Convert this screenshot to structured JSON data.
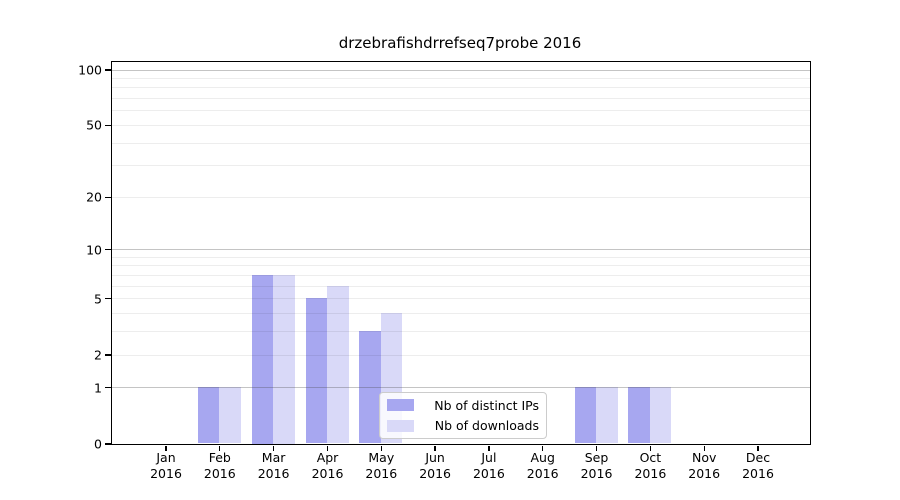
{
  "title": "drzebrafishdrrefseq7probe 2016",
  "colors": {
    "distinct_ips": "#a7a7f0",
    "downloads": "#d9d9f8",
    "grid_major": "#c3c3c3",
    "grid_minor": "#ededed",
    "axis": "#000000",
    "background": "#ffffff"
  },
  "legend": {
    "items": [
      {
        "label": "Nb of distinct IPs",
        "color": "#a7a7f0"
      },
      {
        "label": "Nb of downloads",
        "color": "#d9d9f8"
      }
    ]
  },
  "chart_data": {
    "type": "bar",
    "title": "drzebrafishdrrefseq7probe 2016",
    "categories": [
      "Jan",
      "Feb",
      "Mar",
      "Apr",
      "May",
      "Jun",
      "Jul",
      "Aug",
      "Sep",
      "Oct",
      "Nov",
      "Dec"
    ],
    "category_year": "2016",
    "series": [
      {
        "name": "Nb of distinct IPs",
        "color": "#a7a7f0",
        "values": [
          0,
          1,
          7,
          5,
          3,
          0,
          0,
          0,
          1,
          1,
          0,
          0
        ]
      },
      {
        "name": "Nb of downloads",
        "color": "#d9d9f8",
        "values": [
          0,
          1,
          7,
          6,
          4,
          0,
          0,
          0,
          1,
          1,
          0,
          0
        ]
      }
    ],
    "xlabel": "",
    "ylabel": "",
    "yscale": "log10(value+1)",
    "ylim": [
      0,
      110
    ],
    "ytick_labels": [
      0,
      1,
      2,
      5,
      10,
      20,
      50,
      100
    ],
    "major_gridlines": [
      1,
      10,
      100
    ],
    "minor_gridlines": [
      2,
      3,
      4,
      5,
      6,
      7,
      8,
      9,
      20,
      30,
      40,
      50,
      60,
      70,
      80,
      90
    ],
    "grid": "on",
    "legend_position": "lower center"
  }
}
